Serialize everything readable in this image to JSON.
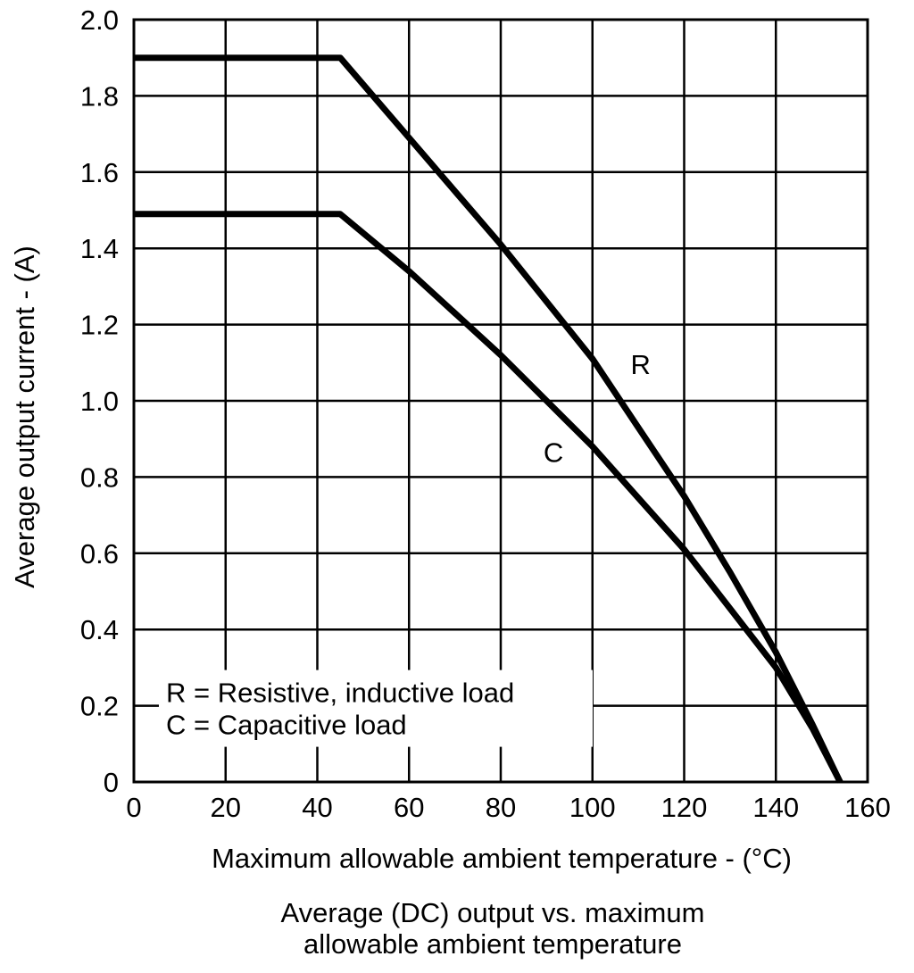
{
  "chart_data": {
    "type": "line",
    "title": "",
    "caption_lines": [
      "Average (DC) output vs. maximum",
      "allowable ambient temperature"
    ],
    "xlabel": "Maximum allowable ambient temperature - (°C)",
    "ylabel": "Average output current - (A)",
    "xlim": [
      0,
      160
    ],
    "ylim": [
      0,
      2.0
    ],
    "xticks": [
      0,
      20,
      40,
      60,
      80,
      100,
      120,
      140,
      160
    ],
    "yticks": [
      0,
      0.2,
      0.4,
      0.6,
      0.8,
      1.0,
      1.2,
      1.4,
      1.6,
      1.8,
      2.0
    ],
    "xtick_labels": [
      "0",
      "20",
      "40",
      "60",
      "80",
      "100",
      "120",
      "140",
      "160"
    ],
    "ytick_labels": [
      "0",
      "0.2",
      "0.4",
      "0.6",
      "0.8",
      "1.0",
      "1.2",
      "1.4",
      "1.6",
      "1.8",
      "2.0"
    ],
    "grid": true,
    "series": [
      {
        "name": "R",
        "label": "R",
        "x": [
          0,
          45,
          60,
          80,
          100,
          110,
          120,
          130,
          140,
          148,
          154
        ],
        "y": [
          1.9,
          1.9,
          1.69,
          1.41,
          1.11,
          0.93,
          0.75,
          0.55,
          0.34,
          0.15,
          0.0
        ]
      },
      {
        "name": "C",
        "label": "C",
        "x": [
          0,
          45,
          60,
          80,
          100,
          120,
          140,
          148,
          154
        ],
        "y": [
          1.49,
          1.49,
          1.34,
          1.12,
          0.88,
          0.61,
          0.3,
          0.14,
          0.0
        ]
      }
    ],
    "legend": {
      "placement": "bottom-left",
      "lines": [
        "R = Resistive, inductive load",
        "C = Capacitive load"
      ]
    }
  }
}
